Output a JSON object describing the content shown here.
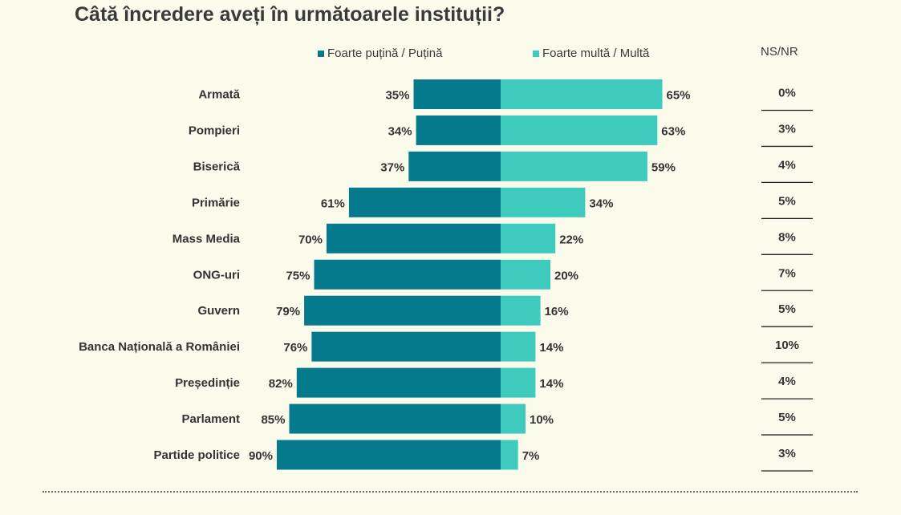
{
  "title": "Câtă încredere aveți în următoarele instituții?",
  "legend": {
    "low": "Foarte puțină / Puțină",
    "high": "Foarte multă / Multă"
  },
  "nsnr_header": "NS/NR",
  "colors": {
    "low": "#047a8c",
    "high": "#3ecbbe",
    "background": "#fbfbec",
    "text": "#333333"
  },
  "chart_data": {
    "type": "bar",
    "orientation": "horizontal-diverging",
    "title": "Câtă încredere aveți în următoarele instituții?",
    "categories": [
      "Armată",
      "Pompieri",
      "Biserică",
      "Primărie",
      "Mass Media",
      "ONG-uri",
      "Guvern",
      "Banca Națională a României",
      "Președinție",
      "Parlament",
      "Partide politice"
    ],
    "series": [
      {
        "name": "Foarte puțină / Puțină",
        "values": [
          35,
          34,
          37,
          61,
          70,
          75,
          79,
          76,
          82,
          85,
          90
        ]
      },
      {
        "name": "Foarte multă / Multă",
        "values": [
          65,
          63,
          59,
          34,
          22,
          20,
          16,
          14,
          14,
          10,
          7
        ]
      },
      {
        "name": "NS/NR",
        "values": [
          0,
          3,
          4,
          5,
          8,
          7,
          5,
          10,
          4,
          5,
          3
        ]
      }
    ],
    "value_suffix": "%"
  }
}
